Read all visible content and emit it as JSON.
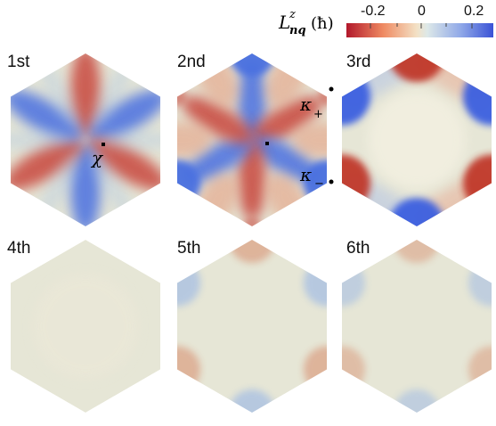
{
  "colorbar": {
    "label_main": "L",
    "label_sup": "z",
    "label_sub": "nq",
    "label_unit": "(ħ)",
    "ticks": [
      "-0.2",
      "0",
      "0.2"
    ],
    "colors": [
      "#b2182b",
      "#ef8a62",
      "#f3e2c6",
      "#dde8e8",
      "#8fa8e8",
      "#3a52d6"
    ]
  },
  "panels": [
    {
      "label": "1st",
      "pattern": "six-lobe-center",
      "strength": 1.0
    },
    {
      "label": "2nd",
      "pattern": "six-lobe-center-and-corners",
      "strength": 1.0
    },
    {
      "label": "3rd",
      "pattern": "edge-corners",
      "strength": 1.0
    },
    {
      "label": "4th",
      "pattern": "near-uniform",
      "strength": 0.05
    },
    {
      "label": "5th",
      "pattern": "faint-corners",
      "strength": 0.25
    },
    {
      "label": "6th",
      "pattern": "faint-corners",
      "strength": 0.2
    }
  ],
  "points": {
    "chi": "χ",
    "kappa_plus_base": "κ",
    "kappa_plus_sub": "+",
    "kappa_minus_base": "κ",
    "kappa_minus_sub": "−"
  }
}
